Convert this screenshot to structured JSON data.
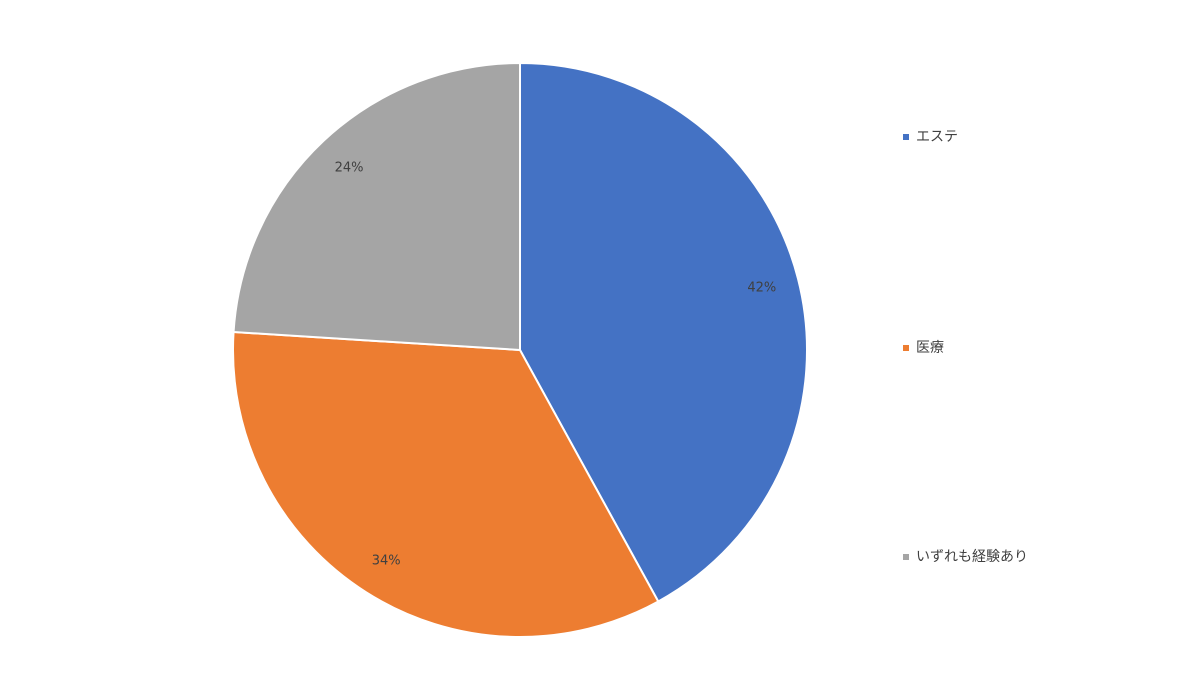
{
  "chart_data": {
    "type": "pie",
    "categories": [
      "エステ",
      "医療",
      "いずれも経験あり"
    ],
    "values": [
      42,
      34,
      24
    ],
    "value_labels": [
      "42%",
      "34%",
      "24%"
    ],
    "colors": [
      "#4472c4",
      "#ed7d31",
      "#a5a5a5"
    ],
    "legend": "right"
  }
}
